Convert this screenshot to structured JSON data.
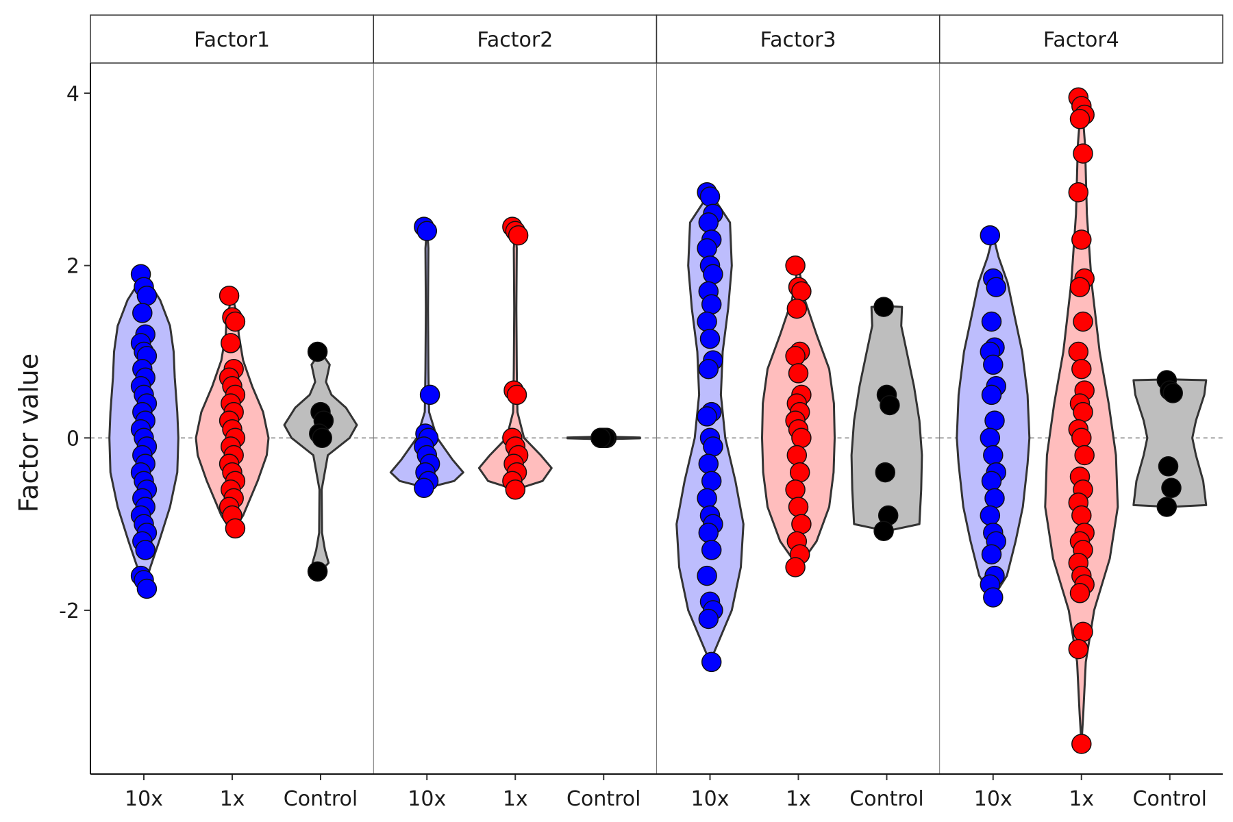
{
  "chart_data": {
    "type": "violin",
    "ylabel": "Factor value",
    "xlabel": "",
    "ylim": [
      -3.9,
      4.35
    ],
    "yticks": [
      -2,
      0,
      2,
      4
    ],
    "reference_line": 0,
    "groups": [
      "10x",
      "1x",
      "Control"
    ],
    "group_colors": {
      "10x": "#0000ff",
      "1x": "#ff0000",
      "Control": "#000000"
    },
    "violin_fills": {
      "10x": "#bdbdfd",
      "1x": "#ffbdbd",
      "Control": "#bebebe"
    },
    "panels": [
      {
        "name": "Factor1",
        "series": [
          {
            "group": "10x",
            "density": [
              [
                -1.75,
                0
              ],
              [
                -1.5,
                0.18
              ],
              [
                -1.2,
                0.42
              ],
              [
                -0.8,
                0.72
              ],
              [
                -0.4,
                0.92
              ],
              [
                0,
                0.95
              ],
              [
                0.3,
                0.92
              ],
              [
                0.7,
                0.85
              ],
              [
                1.0,
                0.82
              ],
              [
                1.3,
                0.72
              ],
              [
                1.6,
                0.45
              ],
              [
                1.9,
                0
              ]
            ],
            "points": [
              1.9,
              1.75,
              1.65,
              1.45,
              1.2,
              1.1,
              1.0,
              0.95,
              0.8,
              0.7,
              0.6,
              0.5,
              0.4,
              0.3,
              0.2,
              0.1,
              0.0,
              -0.1,
              -0.2,
              -0.3,
              -0.4,
              -0.5,
              -0.6,
              -0.7,
              -0.8,
              -0.9,
              -1.0,
              -1.1,
              -1.2,
              -1.3,
              -1.6,
              -1.65,
              -1.75
            ]
          },
          {
            "group": "1x",
            "density": [
              [
                -1.1,
                0
              ],
              [
                -0.9,
                0.3
              ],
              [
                -0.5,
                0.7
              ],
              [
                -0.2,
                0.95
              ],
              [
                0,
                1.0
              ],
              [
                0.3,
                0.85
              ],
              [
                0.6,
                0.55
              ],
              [
                0.9,
                0.3
              ],
              [
                1.2,
                0.18
              ],
              [
                1.4,
                0.15
              ],
              [
                1.65,
                0
              ]
            ],
            "points": [
              1.65,
              1.4,
              1.35,
              1.1,
              0.8,
              0.7,
              0.6,
              0.5,
              0.4,
              0.3,
              0.2,
              0.1,
              0.0,
              -0.1,
              -0.2,
              -0.3,
              -0.4,
              -0.5,
              -0.6,
              -0.7,
              -0.8,
              -0.9,
              -1.05
            ]
          },
          {
            "group": "Control",
            "density": [
              [
                -1.55,
                0
              ],
              [
                -1.45,
                0.22
              ],
              [
                -1.3,
                0.12
              ],
              [
                -1.1,
                0.04
              ],
              [
                -0.6,
                0.03
              ],
              [
                -0.2,
                0.2
              ],
              [
                0,
                0.8
              ],
              [
                0.15,
                1.0
              ],
              [
                0.35,
                0.7
              ],
              [
                0.5,
                0.3
              ],
              [
                0.65,
                0.15
              ],
              [
                0.85,
                0.25
              ],
              [
                1.0,
                0
              ]
            ],
            "points": [
              1.0,
              0.3,
              0.2,
              0.05,
              0.0,
              -1.55
            ]
          }
        ]
      },
      {
        "name": "Factor2",
        "series": [
          {
            "group": "10x",
            "density": [
              [
                -0.58,
                0
              ],
              [
                -0.5,
                0.75
              ],
              [
                -0.4,
                1.0
              ],
              [
                -0.25,
                0.7
              ],
              [
                0,
                0.28
              ],
              [
                0.3,
                0.06
              ],
              [
                0.5,
                0.05
              ],
              [
                0.8,
                0.04
              ],
              [
                1.5,
                0.03
              ],
              [
                2.2,
                0.04
              ],
              [
                2.45,
                0
              ]
            ],
            "points": [
              2.45,
              2.4,
              0.5,
              0.05,
              0.0,
              -0.1,
              -0.2,
              -0.3,
              -0.4,
              -0.5,
              -0.58
            ]
          },
          {
            "group": "1x",
            "density": [
              [
                -0.6,
                0
              ],
              [
                -0.5,
                0.75
              ],
              [
                -0.35,
                1.0
              ],
              [
                -0.2,
                0.7
              ],
              [
                0,
                0.24
              ],
              [
                0.3,
                0.06
              ],
              [
                0.5,
                0.05
              ],
              [
                0.8,
                0.04
              ],
              [
                1.5,
                0.03
              ],
              [
                2.2,
                0.04
              ],
              [
                2.45,
                0
              ]
            ],
            "points": [
              2.45,
              2.4,
              2.35,
              0.55,
              0.5,
              0.0,
              -0.1,
              -0.2,
              -0.3,
              -0.4,
              -0.5,
              -0.6
            ]
          },
          {
            "group": "Control",
            "density": [
              [
                -0.015,
                0
              ],
              [
                -0.005,
                1.0
              ],
              [
                0.005,
                1.0
              ],
              [
                0.015,
                0
              ]
            ],
            "points": [
              0.0,
              0.0,
              0.0,
              0.0,
              0.0,
              0.0
            ]
          }
        ]
      },
      {
        "name": "Factor3",
        "series": [
          {
            "group": "10x",
            "density": [
              [
                -2.6,
                0
              ],
              [
                -2.3,
                0.3
              ],
              [
                -2.0,
                0.6
              ],
              [
                -1.5,
                0.85
              ],
              [
                -1.0,
                0.92
              ],
              [
                -0.5,
                0.7
              ],
              [
                0,
                0.42
              ],
              [
                0.5,
                0.3
              ],
              [
                1.0,
                0.35
              ],
              [
                1.5,
                0.5
              ],
              [
                2.0,
                0.6
              ],
              [
                2.5,
                0.55
              ],
              [
                2.85,
                0
              ]
            ],
            "points": [
              2.85,
              2.8,
              2.6,
              2.5,
              2.3,
              2.2,
              2.0,
              1.9,
              1.7,
              1.55,
              1.35,
              1.15,
              0.9,
              0.8,
              0.3,
              0.25,
              0.0,
              -0.1,
              -0.3,
              -0.5,
              -0.7,
              -0.9,
              -1.0,
              -1.1,
              -1.3,
              -1.6,
              -1.9,
              -2.0,
              -2.1,
              -2.6
            ]
          },
          {
            "group": "1x",
            "density": [
              [
                -1.5,
                0
              ],
              [
                -1.2,
                0.5
              ],
              [
                -0.8,
                0.85
              ],
              [
                -0.4,
                0.97
              ],
              [
                0,
                1.0
              ],
              [
                0.4,
                0.98
              ],
              [
                0.8,
                0.85
              ],
              [
                1.2,
                0.5
              ],
              [
                1.6,
                0.18
              ],
              [
                2.0,
                0
              ]
            ],
            "points": [
              2.0,
              1.75,
              1.7,
              1.5,
              1.0,
              0.95,
              0.75,
              0.5,
              0.4,
              0.3,
              0.2,
              0.1,
              0.0,
              -0.2,
              -0.4,
              -0.6,
              -0.8,
              -1.0,
              -1.2,
              -1.35,
              -1.5
            ]
          },
          {
            "group": "Control",
            "density": [
              [
                -1.08,
                0
              ],
              [
                -1.0,
                0.9
              ],
              [
                -0.6,
                0.95
              ],
              [
                -0.2,
                0.97
              ],
              [
                0.2,
                0.9
              ],
              [
                0.6,
                0.75
              ],
              [
                1.0,
                0.55
              ],
              [
                1.3,
                0.4
              ],
              [
                1.52,
                0.42
              ],
              [
                1.53,
                0
              ]
            ],
            "points": [
              1.52,
              0.5,
              0.38,
              -0.4,
              -0.9,
              -1.08
            ]
          }
        ]
      },
      {
        "name": "Factor4",
        "series": [
          {
            "group": "10x",
            "density": [
              [
                -1.85,
                0
              ],
              [
                -1.6,
                0.38
              ],
              [
                -1.2,
                0.62
              ],
              [
                -0.8,
                0.82
              ],
              [
                -0.3,
                0.95
              ],
              [
                0,
                1.0
              ],
              [
                0.5,
                0.95
              ],
              [
                1.0,
                0.8
              ],
              [
                1.4,
                0.6
              ],
              [
                1.8,
                0.4
              ],
              [
                2.1,
                0.15
              ],
              [
                2.35,
                0
              ]
            ],
            "points": [
              2.35,
              1.85,
              1.75,
              1.35,
              1.05,
              1.0,
              0.85,
              0.6,
              0.5,
              0.2,
              0.0,
              -0.2,
              -0.4,
              -0.5,
              -0.7,
              -0.9,
              -1.1,
              -1.2,
              -1.35,
              -1.6,
              -1.7,
              -1.85
            ]
          },
          {
            "group": "1x",
            "density": [
              [
                -3.55,
                0
              ],
              [
                -3.2,
                0.05
              ],
              [
                -2.6,
                0.12
              ],
              [
                -2.0,
                0.35
              ],
              [
                -1.4,
                0.78
              ],
              [
                -0.8,
                1.0
              ],
              [
                -0.2,
                0.95
              ],
              [
                0.4,
                0.75
              ],
              [
                1.0,
                0.5
              ],
              [
                1.8,
                0.28
              ],
              [
                2.6,
                0.15
              ],
              [
                3.4,
                0.1
              ],
              [
                3.95,
                0
              ]
            ],
            "points": [
              3.95,
              3.85,
              3.75,
              3.7,
              3.3,
              2.85,
              2.3,
              1.85,
              1.75,
              1.35,
              1.0,
              0.8,
              0.55,
              0.4,
              0.3,
              0.1,
              0.0,
              -0.2,
              -0.45,
              -0.6,
              -0.75,
              -0.9,
              -1.1,
              -1.2,
              -1.3,
              -1.45,
              -1.6,
              -1.7,
              -1.8,
              -2.25,
              -2.45,
              -3.55
            ]
          },
          {
            "group": "Control",
            "density": [
              [
                -0.8,
                0
              ],
              [
                -0.78,
                1.0
              ],
              [
                -0.5,
                0.92
              ],
              [
                -0.2,
                0.72
              ],
              [
                0,
                0.62
              ],
              [
                0.2,
                0.72
              ],
              [
                0.5,
                0.95
              ],
              [
                0.67,
                1.0
              ],
              [
                0.68,
                0
              ]
            ],
            "points": [
              0.67,
              0.55,
              0.52,
              -0.33,
              -0.58,
              -0.8
            ]
          }
        ]
      }
    ]
  }
}
